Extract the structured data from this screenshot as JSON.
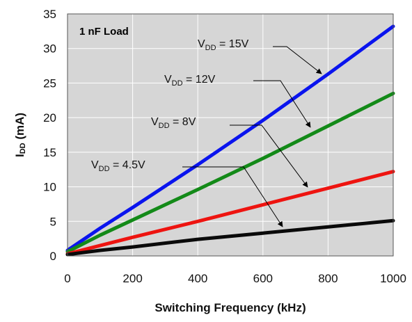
{
  "chart_data": {
    "type": "line",
    "note": "1 nF Load",
    "xlabel": "Switching Frequency (kHz)",
    "ylabel": {
      "main": "I",
      "sub": "DD",
      "rest": " (mA)"
    },
    "xlim": [
      0,
      1000
    ],
    "ylim": [
      0,
      35
    ],
    "xticks": [
      0,
      200,
      400,
      600,
      800,
      1000
    ],
    "yticks": [
      0,
      5,
      10,
      15,
      20,
      25,
      30,
      35
    ],
    "grid": true,
    "series": [
      {
        "name": "VDD = 15V",
        "label": {
          "main": "V",
          "sub": "DD",
          "rest": " = 15V"
        },
        "color": "#0a14ee",
        "x": [
          0,
          100,
          200,
          400,
          600,
          800,
          1000
        ],
        "y": [
          0.8,
          4.0,
          7.0,
          13.2,
          19.6,
          26.3,
          33.2
        ]
      },
      {
        "name": "VDD = 12V",
        "label": {
          "main": "V",
          "sub": "DD",
          "rest": " = 12V"
        },
        "color": "#138a18",
        "x": [
          0,
          100,
          200,
          400,
          600,
          800,
          1000
        ],
        "y": [
          0.6,
          3.0,
          5.2,
          9.6,
          14.1,
          18.8,
          23.5
        ]
      },
      {
        "name": "VDD = 8V",
        "label": {
          "main": "V",
          "sub": "DD",
          "rest": " = 8V"
        },
        "color": "#ee1410",
        "x": [
          0,
          100,
          200,
          400,
          600,
          800,
          1000
        ],
        "y": [
          0.3,
          1.5,
          2.7,
          5.0,
          7.4,
          9.8,
          12.2
        ]
      },
      {
        "name": "VDD = 4.5V",
        "label": {
          "main": "V",
          "sub": "DD",
          "rest": " = 4.5V"
        },
        "color": "#0a0a0a",
        "x": [
          0,
          100,
          200,
          400,
          600,
          800,
          1000
        ],
        "y": [
          0.2,
          0.8,
          1.3,
          2.4,
          3.3,
          4.2,
          5.1
        ]
      }
    ]
  }
}
